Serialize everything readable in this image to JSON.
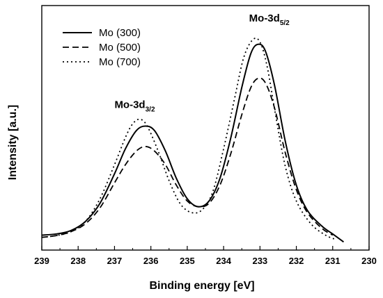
{
  "chart_data": {
    "type": "line",
    "xlabel": "Binding energy [eV]",
    "ylabel": "Intensity [a.u.]",
    "xlim": [
      239,
      230
    ],
    "x_reversed": true,
    "ylim": [
      0,
      1
    ],
    "y_ticks_shown": false,
    "x_ticks": [
      "239",
      "238",
      "237",
      "236",
      "235",
      "234",
      "233",
      "232",
      "231",
      "230"
    ],
    "legend_position": "top-left",
    "grid": false,
    "series": [
      {
        "name": "Mo (300)",
        "line_style": "solid",
        "color": "#000000",
        "points": [
          [
            239.0,
            0.02
          ],
          [
            238.6,
            0.025
          ],
          [
            238.2,
            0.04
          ],
          [
            237.8,
            0.08
          ],
          [
            237.4,
            0.16
          ],
          [
            237.0,
            0.29
          ],
          [
            236.7,
            0.4
          ],
          [
            236.4,
            0.48
          ],
          [
            236.15,
            0.5
          ],
          [
            235.9,
            0.48
          ],
          [
            235.6,
            0.39
          ],
          [
            235.3,
            0.27
          ],
          [
            235.0,
            0.18
          ],
          [
            234.7,
            0.145
          ],
          [
            234.4,
            0.17
          ],
          [
            234.1,
            0.27
          ],
          [
            233.8,
            0.45
          ],
          [
            233.5,
            0.67
          ],
          [
            233.25,
            0.82
          ],
          [
            233.05,
            0.86
          ],
          [
            232.85,
            0.83
          ],
          [
            232.6,
            0.68
          ],
          [
            232.3,
            0.43
          ],
          [
            232.0,
            0.24
          ],
          [
            231.7,
            0.13
          ],
          [
            231.3,
            0.06
          ],
          [
            231.0,
            0.025
          ],
          [
            230.7,
            -0.01
          ]
        ]
      },
      {
        "name": "Mo (500)",
        "line_style": "dashed",
        "color": "#000000",
        "points": [
          [
            239.0,
            0.01
          ],
          [
            238.6,
            0.018
          ],
          [
            238.2,
            0.035
          ],
          [
            237.8,
            0.07
          ],
          [
            237.4,
            0.14
          ],
          [
            237.0,
            0.25
          ],
          [
            236.7,
            0.33
          ],
          [
            236.4,
            0.39
          ],
          [
            236.15,
            0.41
          ],
          [
            235.9,
            0.39
          ],
          [
            235.6,
            0.33
          ],
          [
            235.3,
            0.24
          ],
          [
            235.0,
            0.17
          ],
          [
            234.7,
            0.145
          ],
          [
            234.4,
            0.16
          ],
          [
            234.1,
            0.24
          ],
          [
            233.8,
            0.38
          ],
          [
            233.5,
            0.55
          ],
          [
            233.25,
            0.67
          ],
          [
            233.05,
            0.71
          ],
          [
            232.85,
            0.69
          ],
          [
            232.6,
            0.58
          ],
          [
            232.3,
            0.38
          ],
          [
            232.0,
            0.22
          ],
          [
            231.7,
            0.12
          ],
          [
            231.3,
            0.05
          ],
          [
            231.0,
            0.02
          ]
        ]
      },
      {
        "name": "Mo (700)",
        "line_style": "dotted",
        "color": "#000000",
        "points": [
          [
            239.0,
            0.01
          ],
          [
            238.6,
            0.018
          ],
          [
            238.2,
            0.035
          ],
          [
            237.8,
            0.08
          ],
          [
            237.4,
            0.18
          ],
          [
            237.0,
            0.33
          ],
          [
            236.7,
            0.45
          ],
          [
            236.5,
            0.51
          ],
          [
            236.3,
            0.53
          ],
          [
            236.1,
            0.5
          ],
          [
            235.8,
            0.39
          ],
          [
            235.5,
            0.26
          ],
          [
            235.2,
            0.16
          ],
          [
            234.9,
            0.12
          ],
          [
            234.6,
            0.13
          ],
          [
            234.3,
            0.21
          ],
          [
            234.0,
            0.4
          ],
          [
            233.7,
            0.62
          ],
          [
            233.45,
            0.8
          ],
          [
            233.2,
            0.88
          ],
          [
            233.0,
            0.87
          ],
          [
            232.8,
            0.76
          ],
          [
            232.55,
            0.53
          ],
          [
            232.3,
            0.32
          ],
          [
            232.0,
            0.17
          ],
          [
            231.6,
            0.07
          ],
          [
            231.2,
            0.02
          ],
          [
            230.9,
            0.0
          ]
        ]
      }
    ],
    "annotations": [
      {
        "main": "Mo-3d",
        "sub": "3/2",
        "x": 237.0,
        "y": 0.58
      },
      {
        "main": "Mo-3d",
        "sub": "5/2",
        "x": 233.3,
        "y": 0.96
      }
    ]
  }
}
